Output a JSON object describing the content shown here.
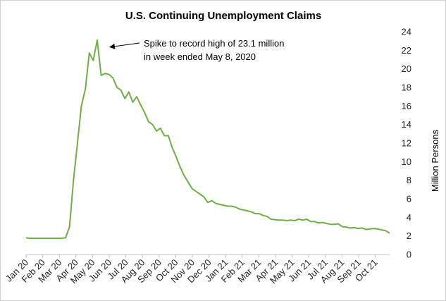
{
  "chart_data": {
    "type": "line",
    "title": "U.S. Continuing Unemployment Claims",
    "ylabel": "Million Persons",
    "ylim": [
      0,
      24
    ],
    "y_ticks": [
      0,
      2,
      4,
      6,
      8,
      10,
      12,
      14,
      16,
      18,
      20,
      22,
      24
    ],
    "x_tick_labels": [
      "Jan 20",
      "Feb 20",
      "Mar 20",
      "Apr 20",
      "May 20",
      "Jun 20",
      "Jul 20",
      "Aug 20",
      "Sep 20",
      "Oct 20",
      "Nov 20",
      "Dec 20",
      "Jan 21",
      "Feb 21",
      "Mar 21",
      "Apr 21",
      "May 21",
      "Jun 21",
      "Jul 21",
      "Aug 21",
      "Sep 21",
      "Oct 21"
    ],
    "grid": false,
    "line_color": "#70ad47",
    "x_unit": "week",
    "series": [
      {
        "values": [
          1.8,
          1.75,
          1.75,
          1.75,
          1.75,
          1.75,
          1.75,
          1.75,
          1.75,
          1.75,
          1.8,
          3.0,
          8.0,
          12.0,
          16.0,
          17.8,
          21.7,
          20.9,
          23.1,
          19.3,
          19.5,
          19.4,
          19.0,
          18.0,
          17.7,
          16.8,
          17.5,
          16.4,
          17.0,
          16.1,
          15.3,
          14.3,
          14.0,
          13.3,
          13.6,
          12.8,
          12.8,
          11.5,
          10.5,
          9.4,
          8.5,
          7.8,
          7.1,
          6.8,
          6.5,
          6.2,
          5.6,
          5.8,
          5.5,
          5.4,
          5.3,
          5.2,
          5.2,
          5.1,
          4.9,
          4.8,
          4.7,
          4.6,
          4.4,
          4.4,
          4.2,
          4.1,
          3.8,
          3.75,
          3.7,
          3.7,
          3.65,
          3.7,
          3.65,
          3.8,
          3.7,
          3.8,
          3.55,
          3.55,
          3.4,
          3.45,
          3.35,
          3.25,
          3.25,
          3.3,
          3.0,
          2.95,
          2.85,
          2.9,
          2.8,
          2.85,
          2.7,
          2.75,
          2.8,
          2.75,
          2.65,
          2.55,
          2.3
        ]
      }
    ],
    "annotation": {
      "lines": [
        "Spike to record high of 23.1 million",
        "in week ended May 8, 2020"
      ],
      "points_to_value": 23.1
    }
  }
}
